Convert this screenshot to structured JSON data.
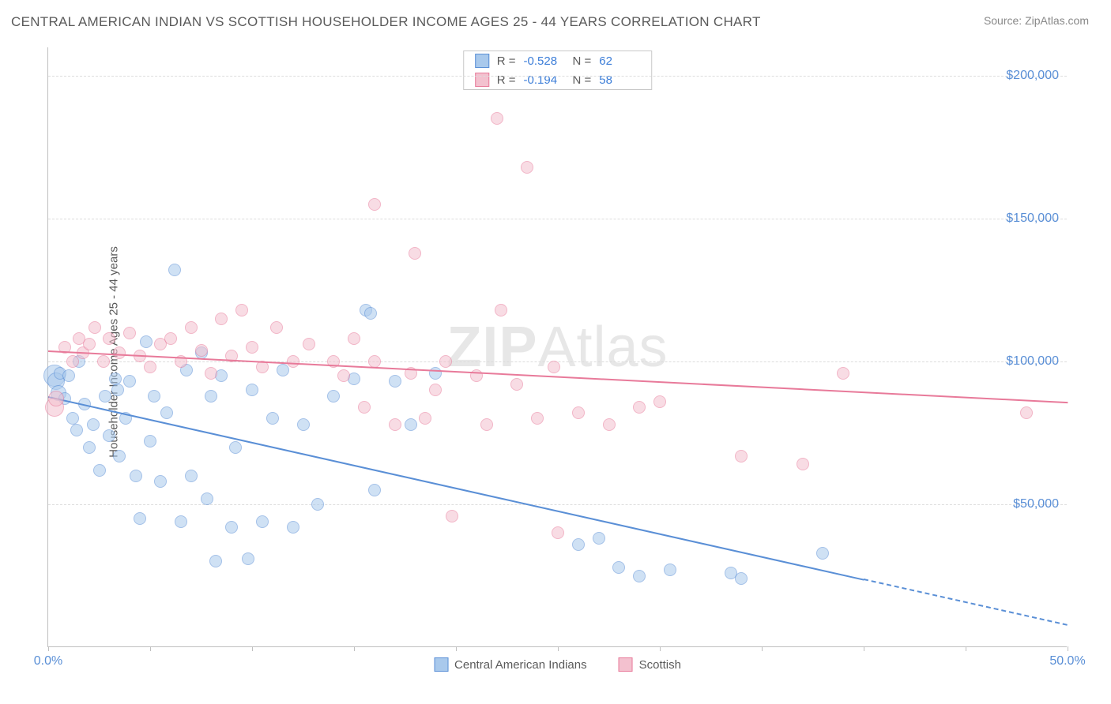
{
  "title": "CENTRAL AMERICAN INDIAN VS SCOTTISH HOUSEHOLDER INCOME AGES 25 - 44 YEARS CORRELATION CHART",
  "source_prefix": "Source: ",
  "source_name": "ZipAtlas.com",
  "ylabel": "Householder Income Ages 25 - 44 years",
  "watermark_a": "ZIP",
  "watermark_b": "Atlas",
  "chart": {
    "type": "scatter",
    "xlim": [
      0,
      50
    ],
    "ylim": [
      0,
      210000
    ],
    "x_unit": "%",
    "y_unit": "$",
    "grid_y": [
      50000,
      100000,
      150000,
      200000
    ],
    "y_tick_labels": [
      "$50,000",
      "$100,000",
      "$150,000",
      "$200,000"
    ],
    "x_tick_positions": [
      0,
      5,
      10,
      15,
      20,
      25,
      30,
      35,
      40,
      45,
      50
    ],
    "x_tick_labels": {
      "0": "0.0%",
      "50": "50.0%"
    },
    "grid_color": "#dcdcdc",
    "axis_color": "#c0c0c0",
    "label_color": "#5a8fd6",
    "background_color": "#ffffff",
    "marker_radius": 8,
    "marker_opacity": 0.55,
    "series": [
      {
        "name": "Central American Indians",
        "fill": "#a9c9ec",
        "stroke": "#5a8fd6",
        "R": "-0.528",
        "N": "62",
        "trend": {
          "x1": 0,
          "y1": 88000,
          "x2": 40,
          "y2": 24000,
          "dash_to_x": 50,
          "dash_to_y": 8000
        },
        "points": [
          {
            "x": 0.3,
            "y": 95000,
            "r": 14
          },
          {
            "x": 0.4,
            "y": 93000,
            "r": 11
          },
          {
            "x": 0.5,
            "y": 89000,
            "r": 10
          },
          {
            "x": 0.6,
            "y": 96000
          },
          {
            "x": 0.8,
            "y": 87000
          },
          {
            "x": 1.0,
            "y": 95000
          },
          {
            "x": 1.2,
            "y": 80000
          },
          {
            "x": 1.4,
            "y": 76000
          },
          {
            "x": 1.5,
            "y": 100000
          },
          {
            "x": 1.8,
            "y": 85000
          },
          {
            "x": 2.0,
            "y": 70000
          },
          {
            "x": 2.2,
            "y": 78000
          },
          {
            "x": 2.5,
            "y": 62000
          },
          {
            "x": 2.8,
            "y": 88000
          },
          {
            "x": 3.0,
            "y": 74000
          },
          {
            "x": 3.3,
            "y": 94000
          },
          {
            "x": 3.4,
            "y": 90000
          },
          {
            "x": 3.5,
            "y": 67000
          },
          {
            "x": 3.8,
            "y": 80000
          },
          {
            "x": 4.0,
            "y": 93000
          },
          {
            "x": 4.3,
            "y": 60000
          },
          {
            "x": 4.5,
            "y": 45000
          },
          {
            "x": 4.8,
            "y": 107000
          },
          {
            "x": 5.0,
            "y": 72000
          },
          {
            "x": 5.2,
            "y": 88000
          },
          {
            "x": 5.5,
            "y": 58000
          },
          {
            "x": 5.8,
            "y": 82000
          },
          {
            "x": 6.2,
            "y": 132000
          },
          {
            "x": 6.5,
            "y": 44000
          },
          {
            "x": 6.8,
            "y": 97000
          },
          {
            "x": 7.0,
            "y": 60000
          },
          {
            "x": 7.5,
            "y": 103000
          },
          {
            "x": 7.8,
            "y": 52000
          },
          {
            "x": 8.0,
            "y": 88000
          },
          {
            "x": 8.2,
            "y": 30000
          },
          {
            "x": 8.5,
            "y": 95000
          },
          {
            "x": 9.0,
            "y": 42000
          },
          {
            "x": 9.2,
            "y": 70000
          },
          {
            "x": 9.8,
            "y": 31000
          },
          {
            "x": 10.0,
            "y": 90000
          },
          {
            "x": 10.5,
            "y": 44000
          },
          {
            "x": 11.0,
            "y": 80000
          },
          {
            "x": 11.5,
            "y": 97000
          },
          {
            "x": 12.0,
            "y": 42000
          },
          {
            "x": 12.5,
            "y": 78000
          },
          {
            "x": 13.2,
            "y": 50000
          },
          {
            "x": 14.0,
            "y": 88000
          },
          {
            "x": 15.0,
            "y": 94000
          },
          {
            "x": 15.6,
            "y": 118000
          },
          {
            "x": 15.8,
            "y": 117000
          },
          {
            "x": 16.0,
            "y": 55000
          },
          {
            "x": 17.0,
            "y": 93000
          },
          {
            "x": 17.8,
            "y": 78000
          },
          {
            "x": 19.0,
            "y": 96000
          },
          {
            "x": 26.0,
            "y": 36000
          },
          {
            "x": 27.0,
            "y": 38000
          },
          {
            "x": 28.0,
            "y": 28000
          },
          {
            "x": 29.0,
            "y": 25000
          },
          {
            "x": 30.5,
            "y": 27000
          },
          {
            "x": 33.5,
            "y": 26000
          },
          {
            "x": 34.0,
            "y": 24000
          },
          {
            "x": 38.0,
            "y": 33000
          }
        ]
      },
      {
        "name": "Scottish",
        "fill": "#f3c1cf",
        "stroke": "#e87a9a",
        "R": "-0.194",
        "N": "58",
        "trend": {
          "x1": 0,
          "y1": 104000,
          "x2": 50,
          "y2": 86000
        },
        "points": [
          {
            "x": 0.3,
            "y": 84000,
            "r": 12
          },
          {
            "x": 0.4,
            "y": 87000,
            "r": 10
          },
          {
            "x": 0.8,
            "y": 105000
          },
          {
            "x": 1.2,
            "y": 100000
          },
          {
            "x": 1.5,
            "y": 108000
          },
          {
            "x": 1.7,
            "y": 103000
          },
          {
            "x": 2.0,
            "y": 106000
          },
          {
            "x": 2.3,
            "y": 112000
          },
          {
            "x": 2.7,
            "y": 100000
          },
          {
            "x": 3.0,
            "y": 108000
          },
          {
            "x": 3.5,
            "y": 103000
          },
          {
            "x": 4.0,
            "y": 110000
          },
          {
            "x": 4.5,
            "y": 102000
          },
          {
            "x": 5.0,
            "y": 98000
          },
          {
            "x": 5.5,
            "y": 106000
          },
          {
            "x": 6.0,
            "y": 108000
          },
          {
            "x": 6.5,
            "y": 100000
          },
          {
            "x": 7.0,
            "y": 112000
          },
          {
            "x": 7.5,
            "y": 104000
          },
          {
            "x": 8.0,
            "y": 96000
          },
          {
            "x": 8.5,
            "y": 115000
          },
          {
            "x": 9.0,
            "y": 102000
          },
          {
            "x": 9.5,
            "y": 118000
          },
          {
            "x": 10.0,
            "y": 105000
          },
          {
            "x": 10.5,
            "y": 98000
          },
          {
            "x": 11.2,
            "y": 112000
          },
          {
            "x": 12.0,
            "y": 100000
          },
          {
            "x": 12.8,
            "y": 106000
          },
          {
            "x": 14.0,
            "y": 100000
          },
          {
            "x": 14.5,
            "y": 95000
          },
          {
            "x": 15.0,
            "y": 108000
          },
          {
            "x": 15.5,
            "y": 84000
          },
          {
            "x": 16.0,
            "y": 155000
          },
          {
            "x": 16.0,
            "y": 100000
          },
          {
            "x": 17.0,
            "y": 78000
          },
          {
            "x": 17.8,
            "y": 96000
          },
          {
            "x": 18.0,
            "y": 138000
          },
          {
            "x": 18.5,
            "y": 80000
          },
          {
            "x": 19.0,
            "y": 90000
          },
          {
            "x": 19.5,
            "y": 100000
          },
          {
            "x": 19.8,
            "y": 46000
          },
          {
            "x": 21.0,
            "y": 95000
          },
          {
            "x": 21.5,
            "y": 78000
          },
          {
            "x": 22.0,
            "y": 185000
          },
          {
            "x": 22.2,
            "y": 118000
          },
          {
            "x": 23.0,
            "y": 92000
          },
          {
            "x": 23.5,
            "y": 168000
          },
          {
            "x": 24.0,
            "y": 80000
          },
          {
            "x": 24.8,
            "y": 98000
          },
          {
            "x": 25.0,
            "y": 40000
          },
          {
            "x": 26.0,
            "y": 82000
          },
          {
            "x": 27.5,
            "y": 78000
          },
          {
            "x": 29.0,
            "y": 84000
          },
          {
            "x": 30.0,
            "y": 86000
          },
          {
            "x": 34.0,
            "y": 67000
          },
          {
            "x": 37.0,
            "y": 64000
          },
          {
            "x": 39.0,
            "y": 96000
          },
          {
            "x": 48.0,
            "y": 82000
          }
        ]
      }
    ]
  },
  "legend_top": {
    "r_label": "R =",
    "n_label": "N ="
  },
  "legend_bottom": [
    {
      "label": "Central American Indians",
      "series_idx": 0
    },
    {
      "label": "Scottish",
      "series_idx": 1
    }
  ]
}
